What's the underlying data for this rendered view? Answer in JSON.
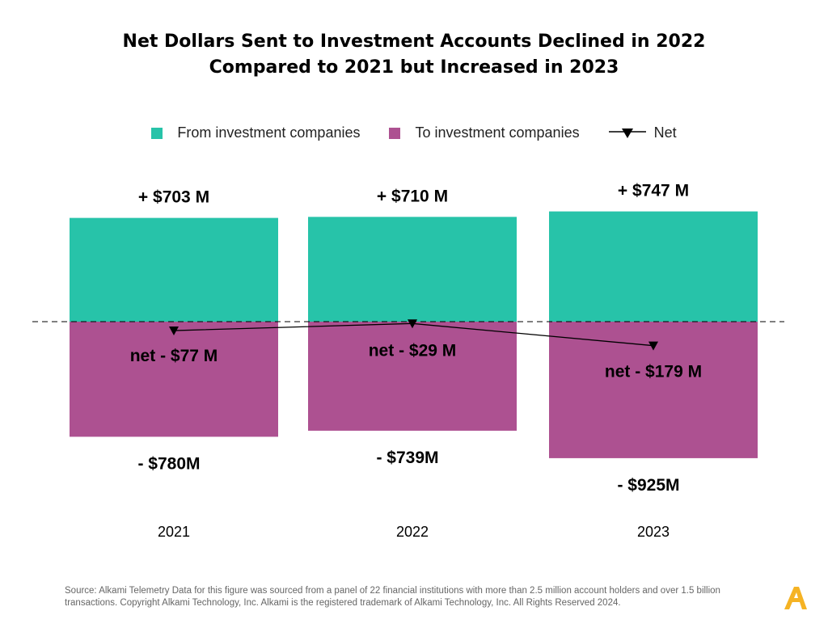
{
  "title": {
    "line1": "Net Dollars Sent to Investment Accounts Declined in 2022",
    "line2": "Compared to 2021 but Increased in 2023"
  },
  "legend": {
    "from_label": "From investment companies",
    "to_label": "To investment companies",
    "net_label": "Net"
  },
  "colors": {
    "from": "#27c3a9",
    "to": "#ad5191",
    "net": "#000000",
    "logo": "#f5b324"
  },
  "chart_data": {
    "type": "bar",
    "categories": [
      "2021",
      "2022",
      "2023"
    ],
    "series": [
      {
        "name": "From investment companies",
        "values": [
          703,
          710,
          747
        ],
        "labels": [
          "+ $703 M",
          "+ $710 M",
          "+ $747 M"
        ]
      },
      {
        "name": "To investment companies",
        "values": [
          -780,
          -739,
          -925
        ],
        "labels": [
          "-  $780M",
          "-  $739M",
          "-  $925M"
        ]
      },
      {
        "name": "Net",
        "type": "line",
        "values": [
          -77,
          -29,
          -179
        ],
        "labels": [
          "net - $77 M",
          "net - $29 M",
          "net - $179 M"
        ]
      }
    ],
    "units": "millions USD",
    "zero_line": "dashed",
    "grid": false,
    "legend_position": "top-center"
  },
  "source_text": "Source:  Alkami Telemetry Data for this figure was sourced from a panel of 22 financial institutions with more than 2.5 million account holders and over 1.5 billion transactions. Copyright Alkami Technology, Inc. Alkami is the registered trademark of Alkami Technology, Inc. All Rights Reserved 2024.",
  "logo_icon": "alkami-a-logo-icon"
}
